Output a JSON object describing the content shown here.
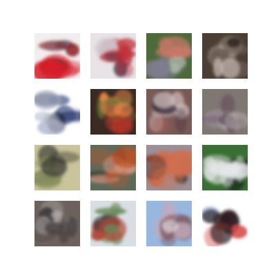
{
  "figure": {
    "rows": 4,
    "cols": 4,
    "tiles": [
      {
        "subject": "red-vehicle-on-white",
        "colors": [
          "#f2eef0",
          "#d81f2a",
          "#8b1a1c",
          "#6a4a58"
        ]
      },
      {
        "subject": "vehicle-on-road",
        "colors": [
          "#e7e3e6",
          "#4a3f52",
          "#c0313a",
          "#cfc7cf"
        ]
      },
      {
        "subject": "animal-in-grass",
        "colors": [
          "#4c6a3a",
          "#7f7c8f",
          "#c97867",
          "#a9b7a0"
        ]
      },
      {
        "subject": "dark-brown-scene",
        "colors": [
          "#4b3e33",
          "#6a5d52",
          "#c8b9b4",
          "#2f2620"
        ]
      },
      {
        "subject": "blue-white-object",
        "colors": [
          "#ffffff",
          "#2a3a74",
          "#a8b0c6",
          "#1e2230"
        ]
      },
      {
        "subject": "red-green-truck",
        "colors": [
          "#3a2a22",
          "#c8362a",
          "#6c7a36",
          "#f08a4a"
        ]
      },
      {
        "subject": "crowd-street",
        "colors": [
          "#7b5a56",
          "#c9b7b8",
          "#3a2f3a",
          "#b05a54"
        ]
      },
      {
        "subject": "grey-scene",
        "colors": [
          "#7e7772",
          "#a49aa5",
          "#5f4a55",
          "#c7c0c0"
        ]
      },
      {
        "subject": "blurry-animal",
        "colors": [
          "#c9c49a",
          "#2f2a2a",
          "#6f7a4a",
          "#9aa07a"
        ]
      },
      {
        "subject": "orange-creature",
        "colors": [
          "#5d6a58",
          "#c0532a",
          "#e4a08a",
          "#2b2623"
        ]
      },
      {
        "subject": "red-machine",
        "colors": [
          "#9c8f96",
          "#c44a2a",
          "#d26e4c",
          "#3a2b29"
        ]
      },
      {
        "subject": "green-field-vehicle",
        "colors": [
          "#3a6f34",
          "#e4e6e8",
          "#1e2a1e",
          "#c27a7a"
        ]
      },
      {
        "subject": "dark-vehicles",
        "colors": [
          "#6d625b",
          "#1f2224",
          "#b7b2af",
          "#4b4544"
        ]
      },
      {
        "subject": "car-on-snow",
        "colors": [
          "#d9dee3",
          "#6b8a5a",
          "#b04a3a",
          "#2b2f33"
        ]
      },
      {
        "subject": "bird-sky",
        "colors": [
          "#97b7de",
          "#c8a9b6",
          "#7d4c52",
          "#edeef2"
        ]
      },
      {
        "subject": "red-car-white",
        "colors": [
          "#ffffff",
          "#d64a4a",
          "#2b1e22",
          "#4a6fb0"
        ]
      }
    ]
  }
}
